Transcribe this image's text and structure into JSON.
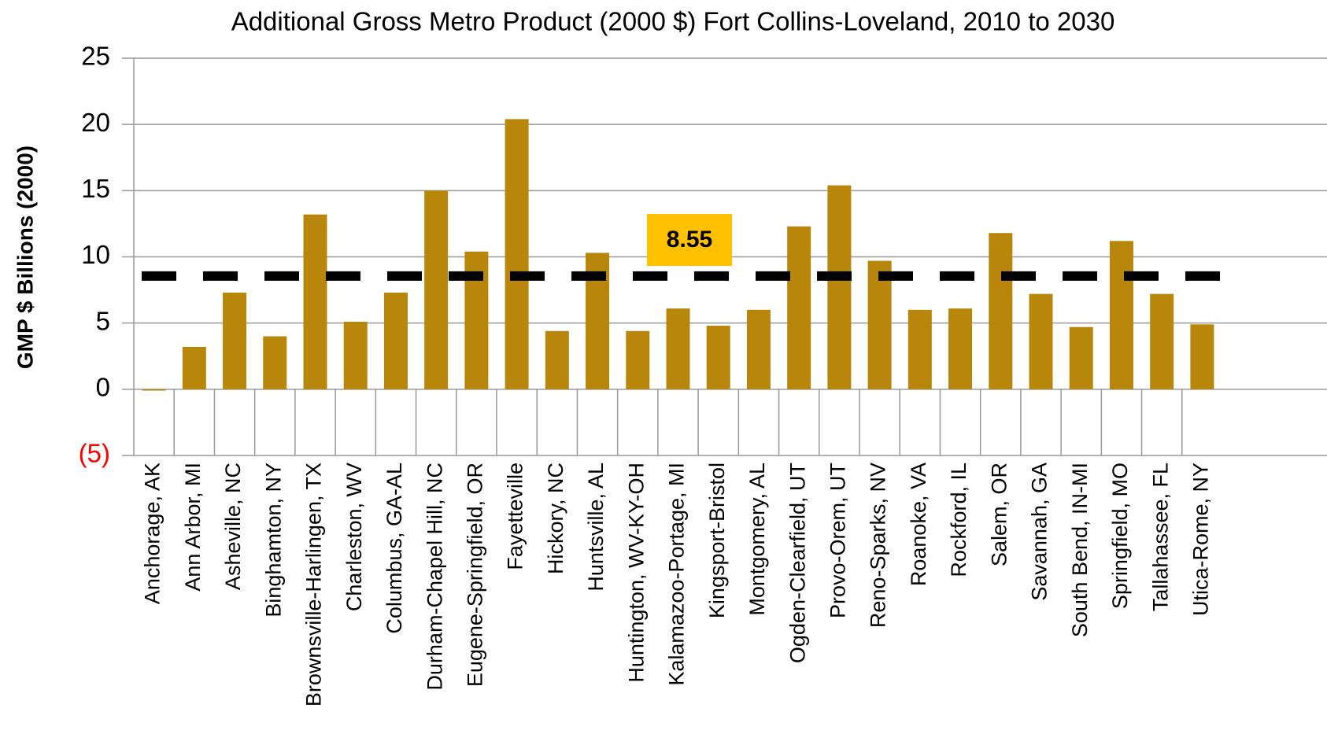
{
  "chart_data": {
    "type": "bar",
    "title": "Additional Gross Metro Product (2000 $) Fort Collins-Loveland, 2010 to 2030",
    "y_label": "GMP $ Billions (2000)",
    "categories": [
      "Anchorage, AK",
      "Ann Arbor, MI",
      "Asheville, NC",
      "Binghamton, NY",
      "Brownsville-Harlingen, TX",
      "Charleston, WV",
      "Columbus, GA-AL",
      "Durham-Chapel Hill, NC",
      "Eugene-Springfield, OR",
      "Fayetteville",
      "Hickory, NC",
      "Huntsville, AL",
      "Huntington, WV-KY-OH",
      "Kalamazoo-Portage, MI",
      "Kingsport-Bristol",
      "Montgomery, AL",
      "Ogden-Clearfield, UT",
      "Provo-Orem, UT",
      "Reno-Sparks, NV",
      "Roanoke, VA",
      "Rockford, IL",
      "Salem, OR",
      "Savannah, GA",
      "South Bend, IN-MI",
      "Springfield, MO",
      "Tallahassee, FL",
      "Utica-Rome, NY"
    ],
    "values": [
      -0.1,
      3.2,
      7.3,
      4.0,
      13.2,
      5.1,
      7.3,
      15.0,
      10.4,
      20.4,
      4.4,
      10.3,
      4.4,
      6.1,
      4.8,
      6.0,
      12.3,
      15.4,
      9.7,
      6.0,
      6.1,
      11.8,
      7.2,
      4.7,
      11.2,
      7.2,
      4.9
    ],
    "color": "#b8860b",
    "reference_line": 8.55,
    "reference_color": "#000000",
    "annotation_color": "#ffc000",
    "ylim": [
      -5,
      25
    ],
    "yticks": [
      {
        "value": -5,
        "label": "(5)"
      },
      0,
      5,
      10,
      15,
      20,
      25
    ],
    "negative_tick_color": "#ff0000",
    "grid": true
  }
}
